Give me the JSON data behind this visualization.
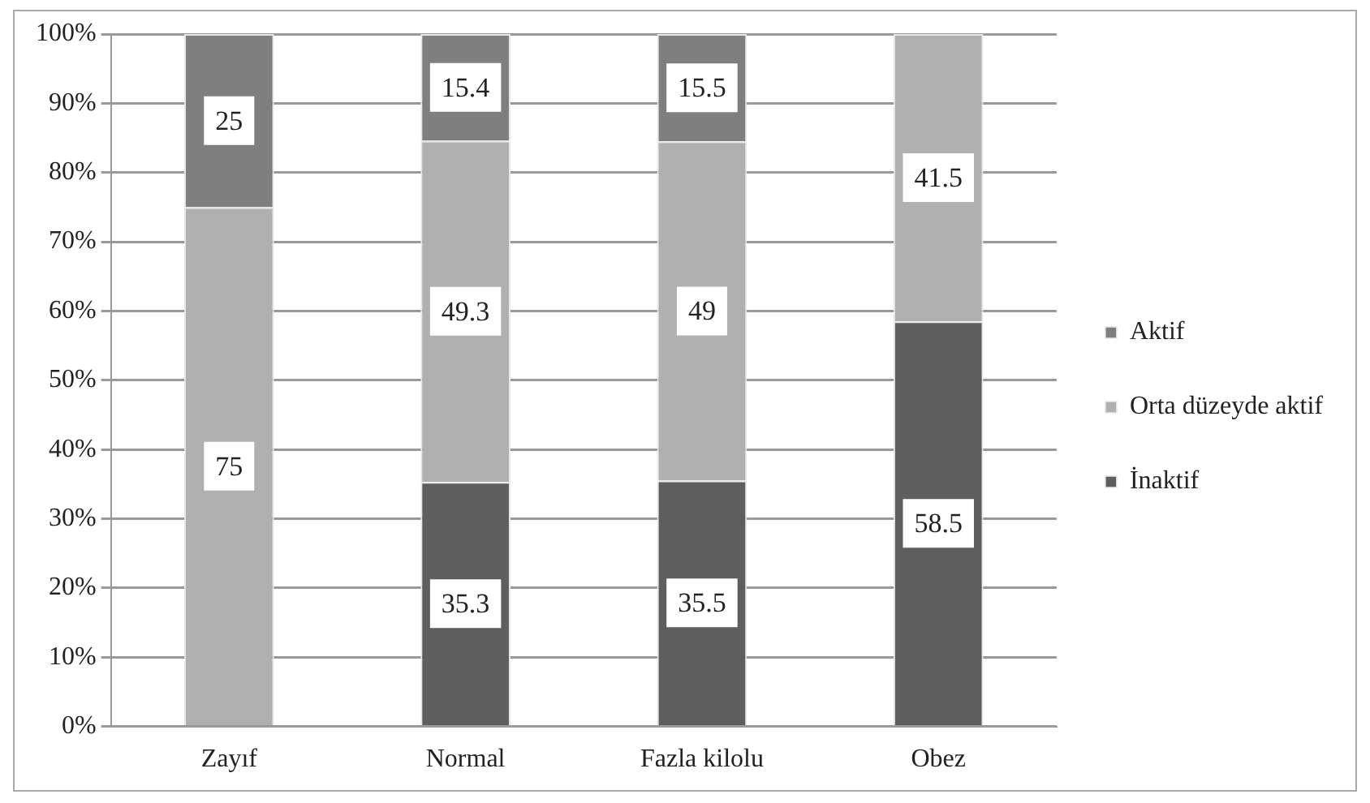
{
  "chart_data": {
    "type": "bar",
    "stacked": true,
    "categories": [
      "Zayıf",
      "Normal",
      "Fazla kilolu",
      "Obez"
    ],
    "series": [
      {
        "name": "İnaktif",
        "color": "#5e5e5e",
        "values": [
          0,
          35.3,
          35.5,
          58.5
        ],
        "value_labels": [
          null,
          "35.3",
          "35.5",
          "58.5"
        ]
      },
      {
        "name": "Orta düzeyde aktif",
        "color": "#b0b0b0",
        "values": [
          75,
          49.3,
          49,
          41.5
        ],
        "value_labels": [
          "75",
          "49.3",
          "49",
          "41.5"
        ]
      },
      {
        "name": "Aktif",
        "color": "#7f7f7f",
        "values": [
          25,
          15.4,
          15.5,
          0
        ],
        "value_labels": [
          "25",
          "15.4",
          "15.5",
          null
        ]
      }
    ],
    "ylim": [
      0,
      100
    ],
    "yticks": [
      {
        "value": 0,
        "label": "0%"
      },
      {
        "value": 10,
        "label": "10%"
      },
      {
        "value": 20,
        "label": "20%"
      },
      {
        "value": 30,
        "label": "30%"
      },
      {
        "value": 40,
        "label": "40%"
      },
      {
        "value": 50,
        "label": "50%"
      },
      {
        "value": 60,
        "label": "60%"
      },
      {
        "value": 70,
        "label": "70%"
      },
      {
        "value": 80,
        "label": "80%"
      },
      {
        "value": 90,
        "label": "90%"
      },
      {
        "value": 100,
        "label": "100%"
      }
    ],
    "grid": "y",
    "legend": "right"
  }
}
